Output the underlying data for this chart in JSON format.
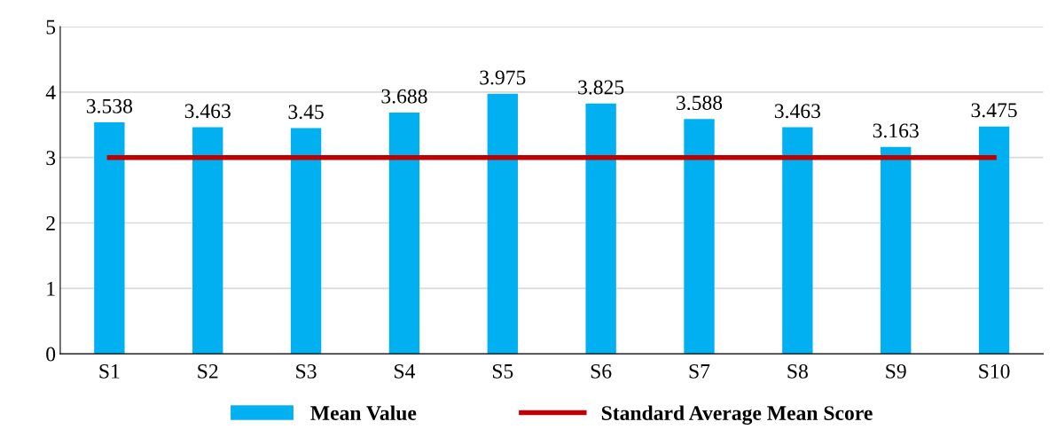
{
  "chart_data": {
    "type": "bar",
    "categories": [
      "S1",
      "S2",
      "S3",
      "S4",
      "S5",
      "S6",
      "S7",
      "S8",
      "S9",
      "S10"
    ],
    "series": [
      {
        "name": "Mean Value",
        "color": "#00b0f0",
        "values": [
          3.538,
          3.463,
          3.45,
          3.688,
          3.975,
          3.825,
          3.588,
          3.463,
          3.163,
          3.475
        ],
        "data_labels": true
      },
      {
        "name": "Standard Average Mean Score",
        "type": "line",
        "color": "#c00000",
        "values": [
          3,
          3,
          3,
          3,
          3,
          3,
          3,
          3,
          3,
          3
        ]
      }
    ],
    "ylim": [
      0,
      5
    ],
    "yticks": [
      0,
      1,
      2,
      3,
      4,
      5
    ],
    "grid": "y",
    "legend": "bottom",
    "marker": "none"
  }
}
